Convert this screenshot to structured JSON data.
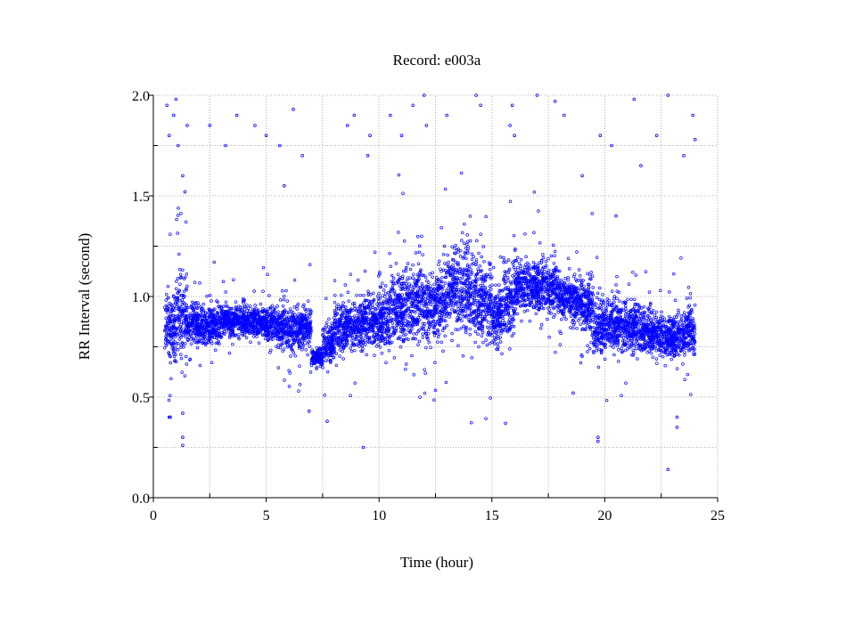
{
  "chart_data": {
    "type": "scatter",
    "title": "Record:  e003a",
    "xlabel": "Time (hour)",
    "ylabel": "RR Interval (second)",
    "xlim": [
      0,
      25
    ],
    "ylim": [
      0,
      2.0
    ],
    "xticks": [
      0,
      5,
      10,
      15,
      20,
      25
    ],
    "xtick_labels": [
      "0",
      "5",
      "10",
      "15",
      "20",
      "25"
    ],
    "yticks": [
      0,
      0.5,
      1.0,
      1.5,
      2.0
    ],
    "ytick_labels": [
      "0.0",
      "0.5",
      "1.0",
      "1.5",
      "2.0"
    ],
    "grid": true,
    "grid_step": {
      "x": 2.5,
      "y": 0.25
    },
    "marker_color": "#0000ff",
    "series_density": {
      "bin_hours": 0.5,
      "bin_start": [
        0.5,
        1.0,
        1.5,
        2.0,
        2.5,
        3.0,
        3.5,
        4.0,
        4.5,
        5.0,
        5.5,
        6.0,
        6.5,
        7.0,
        7.5,
        8.0,
        8.5,
        9.0,
        9.5,
        10.0,
        10.5,
        11.0,
        11.5,
        12.0,
        12.5,
        13.0,
        13.5,
        14.0,
        14.5,
        15.0,
        15.5,
        16.0,
        16.5,
        17.0,
        17.5,
        18.0,
        18.5,
        19.0,
        19.5,
        20.0,
        20.5,
        21.0,
        21.5,
        22.0,
        22.5,
        23.0,
        23.5
      ],
      "mean_rr": [
        0.85,
        0.92,
        0.86,
        0.85,
        0.86,
        0.88,
        0.88,
        0.88,
        0.87,
        0.86,
        0.84,
        0.84,
        0.85,
        0.7,
        0.76,
        0.84,
        0.86,
        0.87,
        0.89,
        0.9,
        0.94,
        0.95,
        0.96,
        0.95,
        0.98,
        1.05,
        1.04,
        1.0,
        0.98,
        0.9,
        1.0,
        1.06,
        1.05,
        1.05,
        1.03,
        1.0,
        0.98,
        0.95,
        0.85,
        0.86,
        0.86,
        0.85,
        0.84,
        0.82,
        0.8,
        0.8,
        0.82
      ],
      "spread_rr": [
        0.16,
        0.2,
        0.1,
        0.09,
        0.08,
        0.08,
        0.07,
        0.07,
        0.07,
        0.08,
        0.1,
        0.12,
        0.1,
        0.04,
        0.08,
        0.12,
        0.12,
        0.13,
        0.14,
        0.15,
        0.17,
        0.18,
        0.18,
        0.18,
        0.18,
        0.18,
        0.2,
        0.2,
        0.2,
        0.15,
        0.2,
        0.12,
        0.12,
        0.12,
        0.12,
        0.1,
        0.12,
        0.15,
        0.12,
        0.12,
        0.12,
        0.13,
        0.12,
        0.1,
        0.1,
        0.1,
        0.12
      ]
    },
    "outliers": [
      [
        0.6,
        1.95
      ],
      [
        0.7,
        1.8
      ],
      [
        0.9,
        1.9
      ],
      [
        1.0,
        1.98
      ],
      [
        1.1,
        1.75
      ],
      [
        1.3,
        1.6
      ],
      [
        1.5,
        1.85
      ],
      [
        1.4,
        1.52
      ],
      [
        2.5,
        1.85
      ],
      [
        3.2,
        1.75
      ],
      [
        3.7,
        1.9
      ],
      [
        4.5,
        1.85
      ],
      [
        5.0,
        1.8
      ],
      [
        5.6,
        1.75
      ],
      [
        6.2,
        1.93
      ],
      [
        6.6,
        1.7
      ],
      [
        5.8,
        1.55
      ],
      [
        0.7,
        0.4
      ],
      [
        0.75,
        0.4
      ],
      [
        1.3,
        0.3
      ],
      [
        1.3,
        0.26
      ],
      [
        1.3,
        0.42
      ],
      [
        7.7,
        0.38
      ],
      [
        9.3,
        0.25
      ],
      [
        6.9,
        0.43
      ],
      [
        8.6,
        1.85
      ],
      [
        8.9,
        1.9
      ],
      [
        9.5,
        1.7
      ],
      [
        9.6,
        1.8
      ],
      [
        10.5,
        1.9
      ],
      [
        11.0,
        1.8
      ],
      [
        11.5,
        1.95
      ],
      [
        12.0,
        2.0
      ],
      [
        12.1,
        1.85
      ],
      [
        13.0,
        1.9
      ],
      [
        14.3,
        2.0
      ],
      [
        14.5,
        1.95
      ],
      [
        15.8,
        1.85
      ],
      [
        15.9,
        1.95
      ],
      [
        16.0,
        1.8
      ],
      [
        17.0,
        2.0
      ],
      [
        17.8,
        1.97
      ],
      [
        18.2,
        1.9
      ],
      [
        19.0,
        1.6
      ],
      [
        19.8,
        1.8
      ],
      [
        20.3,
        1.75
      ],
      [
        21.3,
        1.98
      ],
      [
        21.6,
        1.65
      ],
      [
        22.3,
        1.8
      ],
      [
        22.8,
        2.0
      ],
      [
        19.7,
        0.3
      ],
      [
        19.7,
        0.28
      ],
      [
        22.8,
        0.14
      ],
      [
        23.2,
        0.35
      ],
      [
        23.2,
        0.4
      ],
      [
        23.9,
        1.9
      ],
      [
        24.0,
        1.78
      ],
      [
        23.5,
        1.7
      ],
      [
        18.6,
        0.52
      ],
      [
        15.6,
        0.37
      ],
      [
        12.9,
        1.25
      ],
      [
        20.5,
        1.4
      ]
    ]
  }
}
